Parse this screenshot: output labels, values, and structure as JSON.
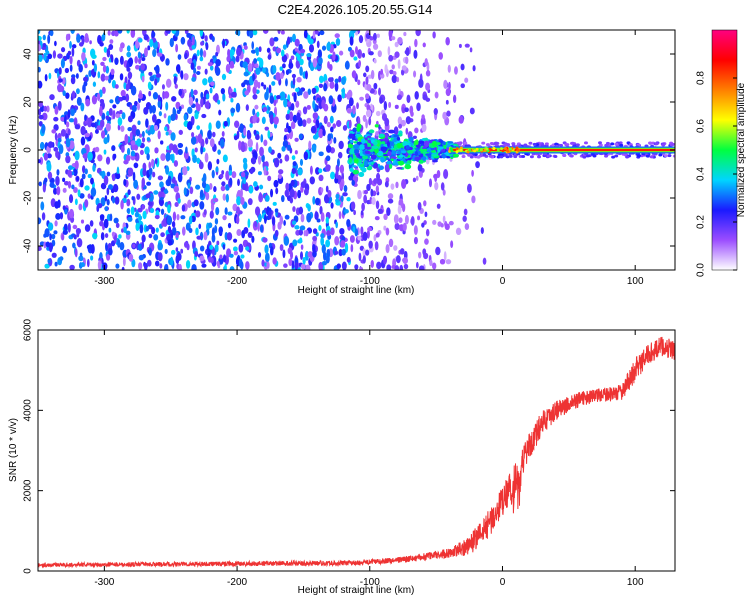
{
  "page_title": "C2E4.2026.105.20.55.G14",
  "chart_data": [
    {
      "type": "heatmap",
      "title": "C2E4.2026.105.20.55.G14",
      "xlabel": "Height of straight line (km)",
      "ylabel": "Frequency (Hz)",
      "xlim": [
        -350,
        130
      ],
      "ylim": [
        -50,
        50
      ],
      "x_ticks": [
        -300,
        -200,
        -100,
        0,
        100
      ],
      "y_ticks": [
        -40,
        -20,
        0,
        20,
        40
      ],
      "colorbar": {
        "label": "Normalized spectral amplitude",
        "range": [
          0,
          1
        ],
        "ticks": [
          0.0,
          0.2,
          0.4,
          0.6,
          0.8
        ],
        "colors": [
          "#ffffff",
          "#9b4dff",
          "#1a1aff",
          "#00d5ff",
          "#00ff40",
          "#ffff00",
          "#ff7f00",
          "#ff0000",
          "#ff0080"
        ]
      },
      "features": {
        "scatter_region_x": [
          -350,
          -50
        ],
        "noise_amplitude": 0.35,
        "signal_line_start_x": -40,
        "signal_line_frequency": 0,
        "signal_line_amplitude": 0.85,
        "cluster_center_x": -100,
        "cluster_amplitude": 0.4
      }
    },
    {
      "type": "line",
      "xlabel": "Height of straight line (km)",
      "ylabel": "SNR (10 * v/v)",
      "xlim": [
        -350,
        130
      ],
      "ylim": [
        0,
        6000
      ],
      "x_ticks": [
        -300,
        -200,
        -100,
        0,
        100
      ],
      "y_ticks": [
        0,
        2000,
        4000,
        6000
      ],
      "series": [
        {
          "name": "SNR",
          "color": "#ee3333",
          "profile_x": [
            -350,
            -200,
            -110,
            -70,
            -50,
            -40,
            -30,
            -20,
            -10,
            0,
            10,
            20,
            30,
            40,
            60,
            80,
            90,
            100,
            110,
            120,
            130
          ],
          "profile_y": [
            150,
            180,
            200,
            300,
            400,
            450,
            550,
            800,
            1200,
            1700,
            2400,
            3100,
            3700,
            4000,
            4300,
            4400,
            4450,
            5000,
            5400,
            5600,
            5500
          ],
          "noise": [
            50,
            60,
            60,
            80,
            100,
            120,
            200,
            300,
            350,
            400,
            400,
            350,
            300,
            250,
            180,
            180,
            200,
            300,
            250,
            250,
            250
          ]
        }
      ]
    }
  ]
}
